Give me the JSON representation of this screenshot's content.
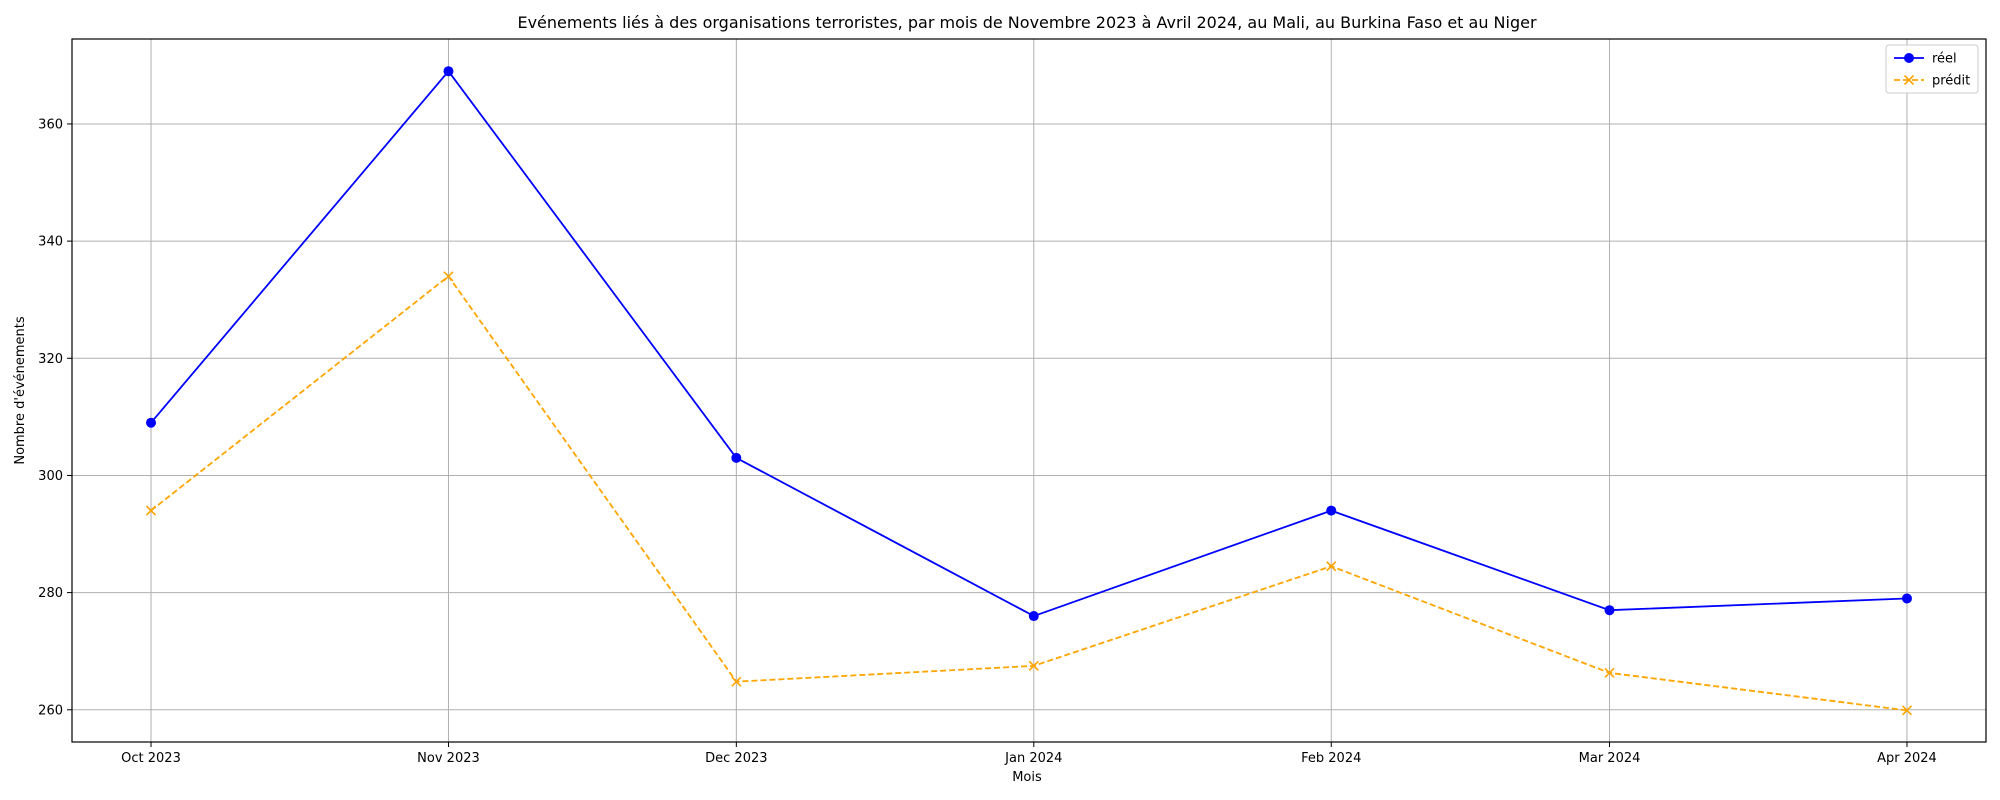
{
  "chart_data": {
    "type": "line",
    "title": "Evénements liés à des organisations terroristes, par mois de Novembre 2023 à Avril 2024, au Mali, au Burkina Faso et au Niger",
    "xlabel": "Mois",
    "ylabel": "Nombre d'événements",
    "categories": [
      "Oct 2023",
      "Nov 2023",
      "Dec 2023",
      "Jan 2024",
      "Feb 2024",
      "Mar 2024",
      "Apr 2024"
    ],
    "x_dates": [
      "2023-10-01",
      "2023-11-01",
      "2023-12-01",
      "2024-01-01",
      "2024-02-01",
      "2024-03-01",
      "2024-04-01"
    ],
    "ylim": [
      254.5,
      374.5
    ],
    "yticks": [
      260,
      280,
      300,
      320,
      340,
      360
    ],
    "grid": true,
    "legend_position": "top-right",
    "series": [
      {
        "name": "réel",
        "color": "#0000ff",
        "marker": "circle",
        "linestyle": "solid",
        "values": [
          309,
          369,
          303,
          276,
          294,
          277,
          279
        ]
      },
      {
        "name": "prédit",
        "color": "#ffa500",
        "marker": "x",
        "linestyle": "dashed",
        "values": [
          294,
          334,
          264.8,
          267.5,
          284.5,
          266.3,
          259.9
        ]
      }
    ]
  }
}
